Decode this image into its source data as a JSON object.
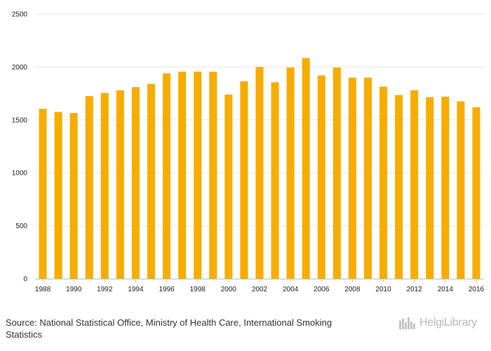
{
  "chart_data": {
    "type": "bar",
    "categories": [
      "1988",
      "1989",
      "1990",
      "1991",
      "1992",
      "1993",
      "1994",
      "1995",
      "1996",
      "1997",
      "1998",
      "1999",
      "2000",
      "2001",
      "2002",
      "2003",
      "2004",
      "2005",
      "2006",
      "2007",
      "2008",
      "2009",
      "2010",
      "2011",
      "2012",
      "2013",
      "2014",
      "2015",
      "2016"
    ],
    "values": [
      1605,
      1575,
      1565,
      1725,
      1755,
      1780,
      1810,
      1840,
      1940,
      1955,
      1955,
      1955,
      1740,
      1865,
      2000,
      1855,
      1995,
      2085,
      1920,
      1995,
      1900,
      1900,
      1815,
      1735,
      1780,
      1715,
      1720,
      1675,
      1620
    ],
    "x_tick_labels": [
      "1988",
      "1990",
      "1992",
      "1994",
      "1996",
      "1998",
      "2000",
      "2002",
      "2004",
      "2006",
      "2008",
      "2010",
      "2012",
      "2014",
      "2016"
    ],
    "y_tick_labels": [
      "0",
      "500",
      "1000",
      "1500",
      "2000",
      "2500"
    ],
    "ylim": [
      0,
      2500
    ],
    "grid": true,
    "bar_color": "#F7AD00",
    "title": "",
    "xlabel": "",
    "ylabel": ""
  },
  "footer": {
    "source_text": "Source: National Statistical Office, Ministry of Health Care, International Smoking Statistics",
    "logo_text": "HelgiLibrary"
  }
}
